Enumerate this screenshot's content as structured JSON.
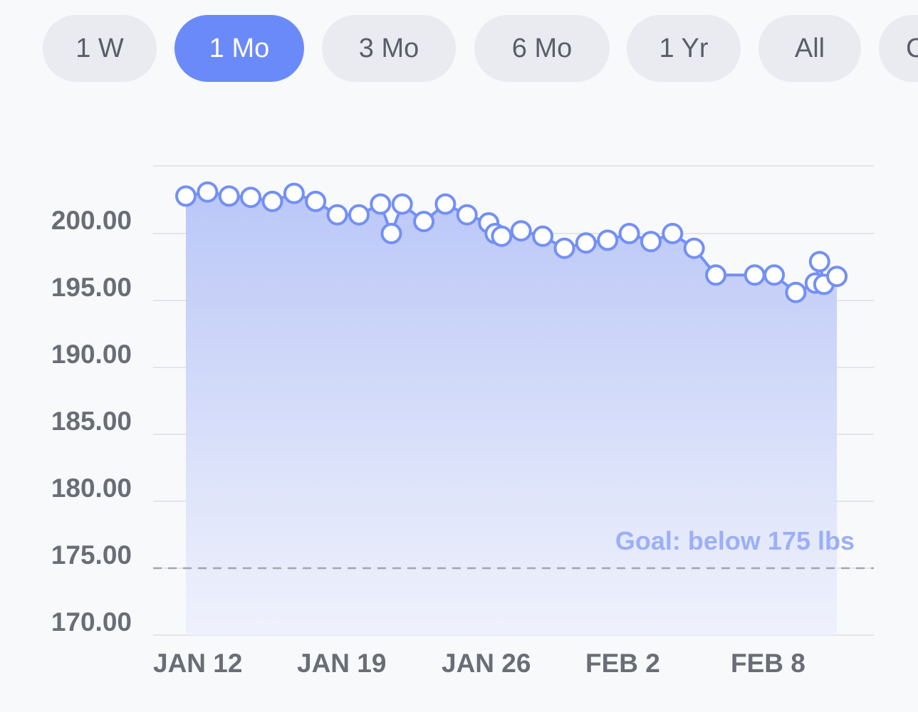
{
  "range_tabs": [
    {
      "label": "1 W",
      "active": false
    },
    {
      "label": "1 Mo",
      "active": true
    },
    {
      "label": "3 Mo",
      "active": false
    },
    {
      "label": "6 Mo",
      "active": false
    },
    {
      "label": "1 Yr",
      "active": false
    },
    {
      "label": "All",
      "active": false
    },
    {
      "label": "C",
      "active": false
    }
  ],
  "colors": {
    "accent": "#6b8afa",
    "line": "#7390f5",
    "fill_top": "#b7c4f7",
    "fill_bottom": "#eef1fc",
    "tab_bg": "#e9ebf1",
    "goal_text": "#9caff7",
    "grid": "#e3e5ea",
    "axis_text": "#6a6d76"
  },
  "chart_data": {
    "type": "area",
    "ylim": [
      170,
      203
    ],
    "yticks": [
      "170.00",
      "175.00",
      "180.00",
      "185.00",
      "190.00",
      "195.00",
      "200.00"
    ],
    "x_tick_labels": [
      "JAN 12",
      "JAN 19",
      "JAN 26",
      "FEB 2",
      "FEB 8"
    ],
    "goal": {
      "value": 175,
      "label": "Goal: below 175 lbs"
    },
    "series": [
      {
        "x": [
          0,
          1,
          2,
          3,
          4,
          5,
          6,
          7,
          8,
          9,
          9.5,
          10,
          11,
          12,
          13,
          14,
          14.3,
          14.6,
          15.5,
          16.5,
          17.5,
          18.5,
          19.5,
          20.5,
          21.5,
          22.5,
          23.5,
          24.5,
          26.3,
          27.2,
          28.2,
          29.1,
          29.3,
          29.5,
          30.1
        ],
        "values": [
          202.8,
          203.1,
          202.8,
          202.7,
          202.4,
          203.0,
          202.4,
          201.4,
          201.4,
          202.2,
          200.0,
          202.2,
          200.9,
          202.2,
          201.4,
          200.8,
          200.0,
          199.8,
          200.2,
          199.8,
          198.9,
          199.3,
          199.5,
          200.0,
          199.4,
          200.0,
          198.9,
          196.9,
          196.9,
          196.9,
          195.6,
          196.3,
          197.9,
          196.2,
          196.8
        ]
      }
    ]
  }
}
